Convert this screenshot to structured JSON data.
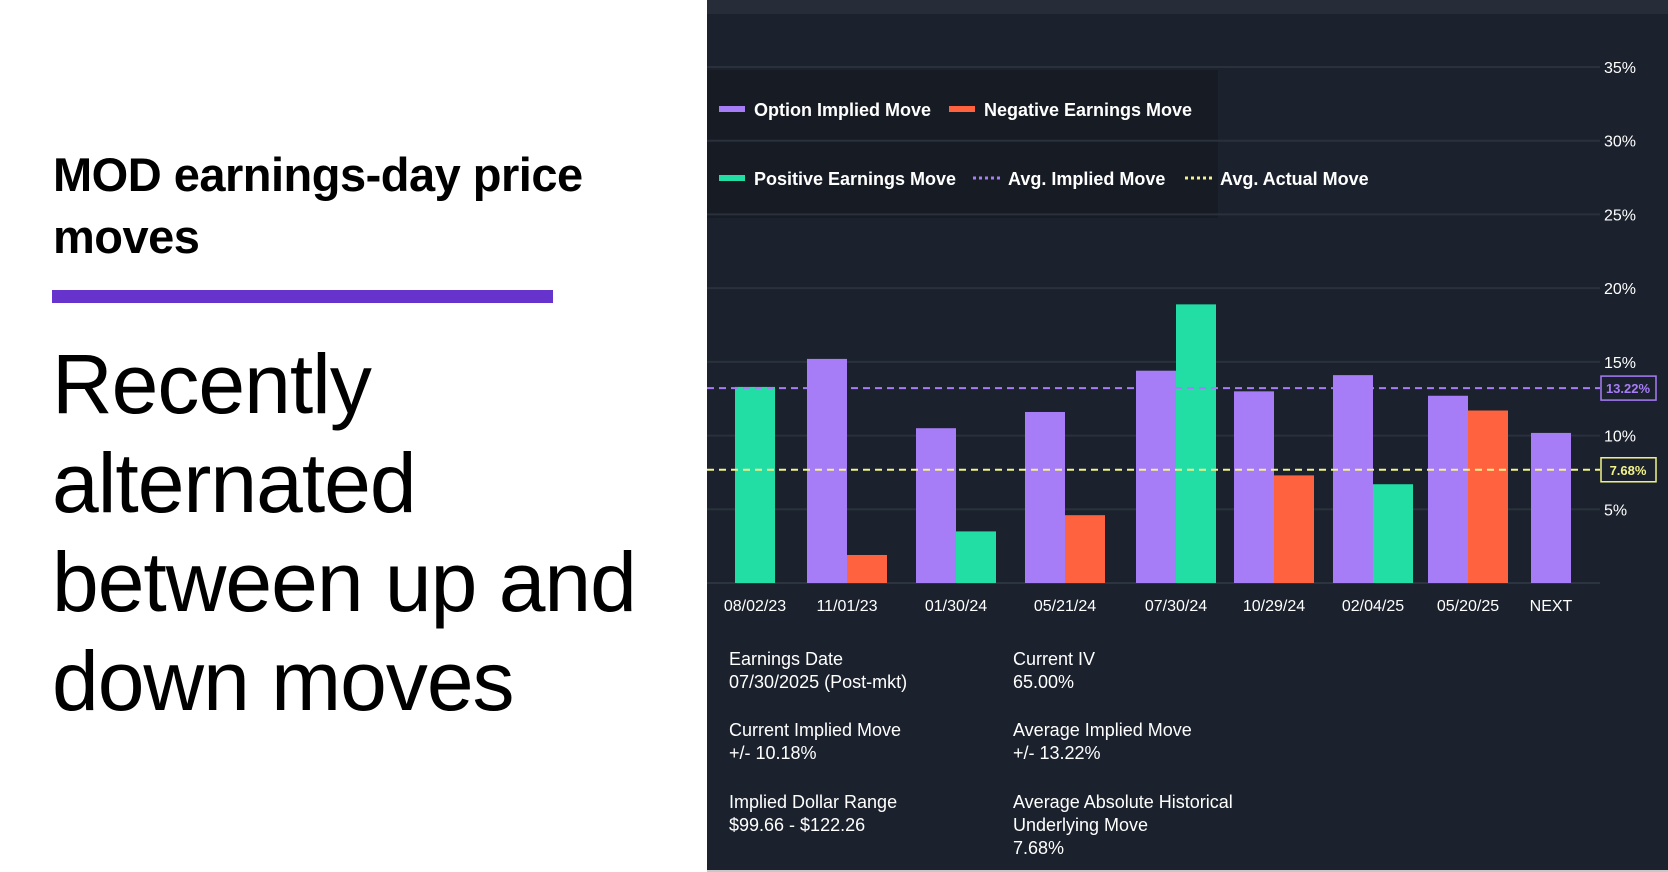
{
  "left": {
    "title": "MOD earnings-day price moves",
    "body": "Recently alternated between up and down moves",
    "accent_color": "#6633cc"
  },
  "chart_data": {
    "type": "bar",
    "title": "",
    "categories": [
      "08/02/23",
      "11/01/23",
      "01/30/24",
      "05/21/24",
      "07/30/24",
      "10/29/24",
      "02/04/25",
      "05/20/25",
      "NEXT"
    ],
    "series": [
      {
        "name": "Option Implied Move",
        "color": "#a77cf7",
        "values": [
          null,
          15.2,
          10.5,
          11.6,
          14.4,
          13.0,
          14.1,
          12.7,
          10.18
        ]
      },
      {
        "name": "Earnings Move",
        "values": [
          13.3,
          1.9,
          3.5,
          4.6,
          18.9,
          7.3,
          6.7,
          11.7,
          null
        ],
        "direction": [
          "positive",
          "negative",
          "positive",
          "negative",
          "positive",
          "negative",
          "positive",
          "negative",
          null
        ]
      }
    ],
    "legend": [
      {
        "label": "Option Implied Move",
        "color": "#a77cf7",
        "style": "solid"
      },
      {
        "label": "Negative Earnings Move",
        "color": "#ff623e",
        "style": "solid"
      },
      {
        "label": "Positive Earnings Move",
        "color": "#22dea4",
        "style": "solid"
      },
      {
        "label": "Avg. Implied Move",
        "color": "#a77cf7",
        "style": "dotted"
      },
      {
        "label": "Avg. Actual Move",
        "color": "#f2f28a",
        "style": "dotted"
      }
    ],
    "legend_placement": "top-left",
    "colors": {
      "positive": "#22dea4",
      "negative": "#ff623e",
      "implied": "#a77cf7"
    },
    "reference_lines": [
      {
        "name": "Avg. Implied Move",
        "value": 13.22,
        "label": "13.22%",
        "color": "#a77cf7"
      },
      {
        "name": "Avg. Actual Move",
        "value": 7.68,
        "label": "7.68%",
        "color": "#f2f28a"
      }
    ],
    "y_ticks": [
      5,
      10,
      15,
      20,
      25,
      30,
      35
    ],
    "y_tick_labels": [
      "5%",
      "10%",
      "15%",
      "20%",
      "25%",
      "30%",
      "35%"
    ],
    "ylim": [
      0,
      35
    ],
    "y_axis_side": "right",
    "grid": true
  },
  "stats": [
    {
      "label": "Earnings Date",
      "value": "07/30/2025 (Post-mkt)"
    },
    {
      "label": "Current IV",
      "value": "65.00%"
    },
    {
      "label": "Current Implied Move",
      "value": "+/- 10.18%"
    },
    {
      "label": "Average Implied Move",
      "value": "+/- 13.22%"
    },
    {
      "label": "Implied Dollar Range",
      "value": "$99.66 - $122.26"
    },
    {
      "label": "Average Absolute Historical Underlying Move",
      "value": "7.68%"
    }
  ]
}
